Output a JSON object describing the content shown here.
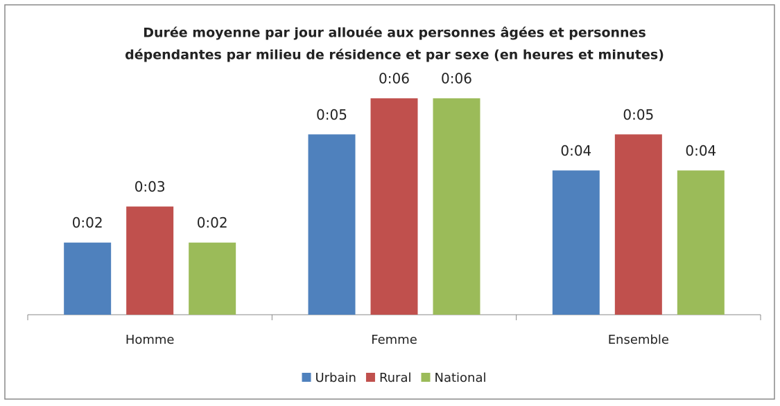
{
  "chart_data": {
    "type": "bar",
    "title": [
      "Durée moyenne par jour allouée aux personnes âgées et personnes",
      "dépendantes par milieu de résidence et par sexe (en heures et minutes)"
    ],
    "categories": [
      "Homme",
      "Femme",
      "Ensemble"
    ],
    "series": [
      {
        "name": "Urbain",
        "color": "#4f81bd",
        "values": [
          2,
          5,
          4
        ],
        "value_labels": [
          "0:02",
          "0:05",
          "0:04"
        ]
      },
      {
        "name": "Rural",
        "color": "#c0504d",
        "values": [
          3,
          6,
          5
        ],
        "value_labels": [
          "0:03",
          "0:06",
          "0:05"
        ]
      },
      {
        "name": "National",
        "color": "#9bbb59",
        "values": [
          2,
          6,
          4
        ],
        "value_labels": [
          "0:02",
          "0:06",
          "0:04"
        ]
      }
    ],
    "ylim": [
      0,
      7
    ],
    "legend": "bottom"
  }
}
